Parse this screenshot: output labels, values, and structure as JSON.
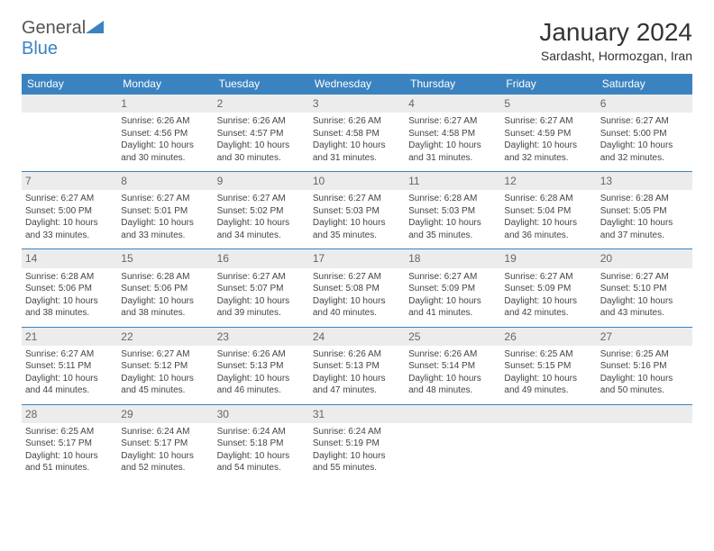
{
  "logo": {
    "text1": "General",
    "text2": "Blue"
  },
  "title": "January 2024",
  "subtitle": "Sardasht, Hormozgan, Iran",
  "colors": {
    "header_bg": "#3b83c0",
    "header_text": "#ffffff",
    "daynum_bg": "#ececec",
    "daynum_text": "#666666",
    "body_text": "#444444",
    "border": "#3b83c0"
  },
  "weekdays": [
    "Sunday",
    "Monday",
    "Tuesday",
    "Wednesday",
    "Thursday",
    "Friday",
    "Saturday"
  ],
  "weeks": [
    [
      null,
      {
        "n": "1",
        "sr": "Sunrise: 6:26 AM",
        "ss": "Sunset: 4:56 PM",
        "d1": "Daylight: 10 hours",
        "d2": "and 30 minutes."
      },
      {
        "n": "2",
        "sr": "Sunrise: 6:26 AM",
        "ss": "Sunset: 4:57 PM",
        "d1": "Daylight: 10 hours",
        "d2": "and 30 minutes."
      },
      {
        "n": "3",
        "sr": "Sunrise: 6:26 AM",
        "ss": "Sunset: 4:58 PM",
        "d1": "Daylight: 10 hours",
        "d2": "and 31 minutes."
      },
      {
        "n": "4",
        "sr": "Sunrise: 6:27 AM",
        "ss": "Sunset: 4:58 PM",
        "d1": "Daylight: 10 hours",
        "d2": "and 31 minutes."
      },
      {
        "n": "5",
        "sr": "Sunrise: 6:27 AM",
        "ss": "Sunset: 4:59 PM",
        "d1": "Daylight: 10 hours",
        "d2": "and 32 minutes."
      },
      {
        "n": "6",
        "sr": "Sunrise: 6:27 AM",
        "ss": "Sunset: 5:00 PM",
        "d1": "Daylight: 10 hours",
        "d2": "and 32 minutes."
      }
    ],
    [
      {
        "n": "7",
        "sr": "Sunrise: 6:27 AM",
        "ss": "Sunset: 5:00 PM",
        "d1": "Daylight: 10 hours",
        "d2": "and 33 minutes."
      },
      {
        "n": "8",
        "sr": "Sunrise: 6:27 AM",
        "ss": "Sunset: 5:01 PM",
        "d1": "Daylight: 10 hours",
        "d2": "and 33 minutes."
      },
      {
        "n": "9",
        "sr": "Sunrise: 6:27 AM",
        "ss": "Sunset: 5:02 PM",
        "d1": "Daylight: 10 hours",
        "d2": "and 34 minutes."
      },
      {
        "n": "10",
        "sr": "Sunrise: 6:27 AM",
        "ss": "Sunset: 5:03 PM",
        "d1": "Daylight: 10 hours",
        "d2": "and 35 minutes."
      },
      {
        "n": "11",
        "sr": "Sunrise: 6:28 AM",
        "ss": "Sunset: 5:03 PM",
        "d1": "Daylight: 10 hours",
        "d2": "and 35 minutes."
      },
      {
        "n": "12",
        "sr": "Sunrise: 6:28 AM",
        "ss": "Sunset: 5:04 PM",
        "d1": "Daylight: 10 hours",
        "d2": "and 36 minutes."
      },
      {
        "n": "13",
        "sr": "Sunrise: 6:28 AM",
        "ss": "Sunset: 5:05 PM",
        "d1": "Daylight: 10 hours",
        "d2": "and 37 minutes."
      }
    ],
    [
      {
        "n": "14",
        "sr": "Sunrise: 6:28 AM",
        "ss": "Sunset: 5:06 PM",
        "d1": "Daylight: 10 hours",
        "d2": "and 38 minutes."
      },
      {
        "n": "15",
        "sr": "Sunrise: 6:28 AM",
        "ss": "Sunset: 5:06 PM",
        "d1": "Daylight: 10 hours",
        "d2": "and 38 minutes."
      },
      {
        "n": "16",
        "sr": "Sunrise: 6:27 AM",
        "ss": "Sunset: 5:07 PM",
        "d1": "Daylight: 10 hours",
        "d2": "and 39 minutes."
      },
      {
        "n": "17",
        "sr": "Sunrise: 6:27 AM",
        "ss": "Sunset: 5:08 PM",
        "d1": "Daylight: 10 hours",
        "d2": "and 40 minutes."
      },
      {
        "n": "18",
        "sr": "Sunrise: 6:27 AM",
        "ss": "Sunset: 5:09 PM",
        "d1": "Daylight: 10 hours",
        "d2": "and 41 minutes."
      },
      {
        "n": "19",
        "sr": "Sunrise: 6:27 AM",
        "ss": "Sunset: 5:09 PM",
        "d1": "Daylight: 10 hours",
        "d2": "and 42 minutes."
      },
      {
        "n": "20",
        "sr": "Sunrise: 6:27 AM",
        "ss": "Sunset: 5:10 PM",
        "d1": "Daylight: 10 hours",
        "d2": "and 43 minutes."
      }
    ],
    [
      {
        "n": "21",
        "sr": "Sunrise: 6:27 AM",
        "ss": "Sunset: 5:11 PM",
        "d1": "Daylight: 10 hours",
        "d2": "and 44 minutes."
      },
      {
        "n": "22",
        "sr": "Sunrise: 6:27 AM",
        "ss": "Sunset: 5:12 PM",
        "d1": "Daylight: 10 hours",
        "d2": "and 45 minutes."
      },
      {
        "n": "23",
        "sr": "Sunrise: 6:26 AM",
        "ss": "Sunset: 5:13 PM",
        "d1": "Daylight: 10 hours",
        "d2": "and 46 minutes."
      },
      {
        "n": "24",
        "sr": "Sunrise: 6:26 AM",
        "ss": "Sunset: 5:13 PM",
        "d1": "Daylight: 10 hours",
        "d2": "and 47 minutes."
      },
      {
        "n": "25",
        "sr": "Sunrise: 6:26 AM",
        "ss": "Sunset: 5:14 PM",
        "d1": "Daylight: 10 hours",
        "d2": "and 48 minutes."
      },
      {
        "n": "26",
        "sr": "Sunrise: 6:25 AM",
        "ss": "Sunset: 5:15 PM",
        "d1": "Daylight: 10 hours",
        "d2": "and 49 minutes."
      },
      {
        "n": "27",
        "sr": "Sunrise: 6:25 AM",
        "ss": "Sunset: 5:16 PM",
        "d1": "Daylight: 10 hours",
        "d2": "and 50 minutes."
      }
    ],
    [
      {
        "n": "28",
        "sr": "Sunrise: 6:25 AM",
        "ss": "Sunset: 5:17 PM",
        "d1": "Daylight: 10 hours",
        "d2": "and 51 minutes."
      },
      {
        "n": "29",
        "sr": "Sunrise: 6:24 AM",
        "ss": "Sunset: 5:17 PM",
        "d1": "Daylight: 10 hours",
        "d2": "and 52 minutes."
      },
      {
        "n": "30",
        "sr": "Sunrise: 6:24 AM",
        "ss": "Sunset: 5:18 PM",
        "d1": "Daylight: 10 hours",
        "d2": "and 54 minutes."
      },
      {
        "n": "31",
        "sr": "Sunrise: 6:24 AM",
        "ss": "Sunset: 5:19 PM",
        "d1": "Daylight: 10 hours",
        "d2": "and 55 minutes."
      },
      null,
      null,
      null
    ]
  ]
}
